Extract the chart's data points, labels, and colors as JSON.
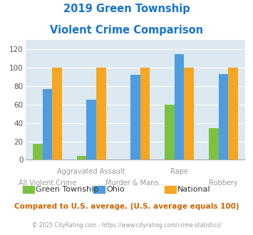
{
  "title_line1": "2019 Green Township",
  "title_line2": "Violent Crime Comparison",
  "title_color": "#1874CD",
  "categories": [
    "All Violent Crime",
    "Aggravated Assault",
    "Murder & Mans...",
    "Rape",
    "Robbery"
  ],
  "series": {
    "Green Township": [
      17,
      4,
      0,
      60,
      34
    ],
    "Ohio": [
      77,
      65,
      92,
      115,
      93
    ],
    "National": [
      100,
      100,
      100,
      100,
      100
    ]
  },
  "colors": {
    "Green Township": "#7DC142",
    "Ohio": "#4D9DE0",
    "National": "#F5A623"
  },
  "ylim": [
    0,
    130
  ],
  "yticks": [
    0,
    20,
    40,
    60,
    80,
    100,
    120
  ],
  "bg_color": "#DCE9F0",
  "subtitle": "Compared to U.S. average. (U.S. average equals 100)",
  "subtitle_color": "#CC6600",
  "footer": "© 2025 CityRating.com - https://www.cityrating.com/crime-statistics/",
  "footer_color": "#999999",
  "bar_width": 0.22,
  "xlabel_fontsize": 7.0,
  "xlabel_color": "#999999",
  "upper_labels": {
    "1": "Aggravated Assault",
    "3": "Rape"
  },
  "lower_labels": {
    "0": "All Violent Crime",
    "2": "Murder & Mans...",
    "4": "Robbery"
  }
}
